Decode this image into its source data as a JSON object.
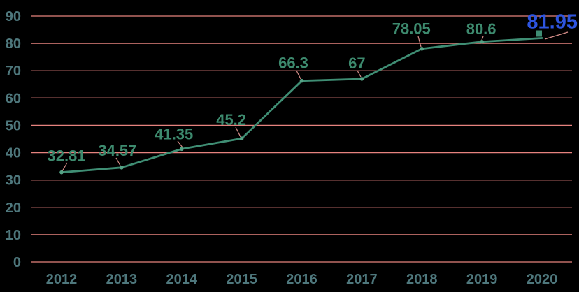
{
  "chart_data": {
    "type": "line",
    "title": "",
    "categories": [
      "2012",
      "2013",
      "2014",
      "2015",
      "2016",
      "2017",
      "2018",
      "2019",
      "2020"
    ],
    "series": [
      {
        "name": "series-1",
        "values": [
          32.81,
          34.57,
          41.35,
          45.2,
          66.3,
          67,
          78.05,
          80.6,
          81.95
        ]
      }
    ],
    "data_labels": [
      "32.81",
      "34.57",
      "41.35",
      "45.2",
      "66.3",
      "67",
      "78.05",
      "80.6",
      "81.95"
    ],
    "highlight_index": 8,
    "y_ticks": [
      0,
      10,
      20,
      30,
      40,
      50,
      60,
      70,
      80,
      90
    ],
    "y_tick_labels": [
      "0",
      "10",
      "20",
      "30",
      "40",
      "50",
      "60",
      "70",
      "80",
      "90"
    ],
    "ylim": [
      0,
      90
    ],
    "xlabel": "",
    "ylabel": "",
    "legend": "none",
    "grid": true,
    "colors": {
      "background": "#000000",
      "gridline": "#e5827e",
      "series_line": "#3f8e74",
      "point_marker": "#55a285",
      "data_label": "#3d8a6e",
      "axis_label": "#4e777c",
      "highlight_label": "#2e55e0",
      "leader_line": "#d88f8a"
    }
  }
}
